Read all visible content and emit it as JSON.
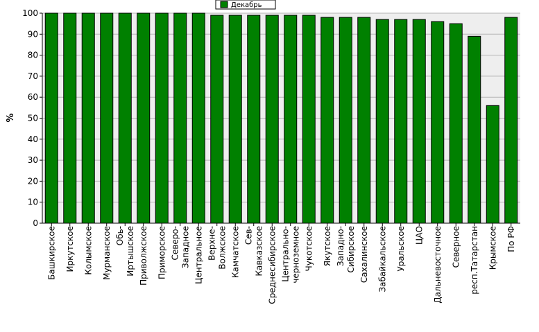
{
  "chart_data": {
    "type": "bar",
    "title": "",
    "xlabel": "",
    "ylabel": "%",
    "ylim": [
      0,
      100
    ],
    "yticks": [
      0,
      10,
      20,
      30,
      40,
      50,
      60,
      70,
      80,
      90,
      100
    ],
    "grid": true,
    "legend_position": "top-center",
    "categories": [
      [
        "Башкирское"
      ],
      [
        "Иркутское"
      ],
      [
        "Колымское"
      ],
      [
        "Мурманское"
      ],
      [
        "Обь-",
        "Иртышское"
      ],
      [
        "Приволжское"
      ],
      [
        "Приморское"
      ],
      [
        "Северо-",
        "Западное"
      ],
      [
        "Центральное"
      ],
      [
        "Верхне-",
        "Волжское"
      ],
      [
        "Камчатское"
      ],
      [
        "Сев-",
        "Кавказское"
      ],
      [
        "Среднесибирское"
      ],
      [
        "Центрально-",
        "черноземное"
      ],
      [
        "Чукотское"
      ],
      [
        "Якутское"
      ],
      [
        "Западно-",
        "Сибирское"
      ],
      [
        "Сахалинское"
      ],
      [
        "Забайкальское"
      ],
      [
        "Уральское"
      ],
      [
        "ЦАО"
      ],
      [
        "Дальневосточное"
      ],
      [
        "Северное"
      ],
      [
        "респ.Татарстан"
      ],
      [
        "Крымское"
      ],
      [
        "По РФ"
      ]
    ],
    "series": [
      {
        "name": "Декабрь",
        "color": "#008000",
        "values": [
          100,
          100,
          100,
          100,
          100,
          100,
          100,
          100,
          100,
          99,
          99,
          99,
          99,
          99,
          99,
          98,
          98,
          98,
          97,
          97,
          97,
          96,
          95,
          89,
          56,
          98
        ]
      }
    ]
  },
  "colors": {
    "plot_background": "#eeeeee",
    "gridline": "#b4b4b4",
    "bar_stroke": "#000000"
  }
}
